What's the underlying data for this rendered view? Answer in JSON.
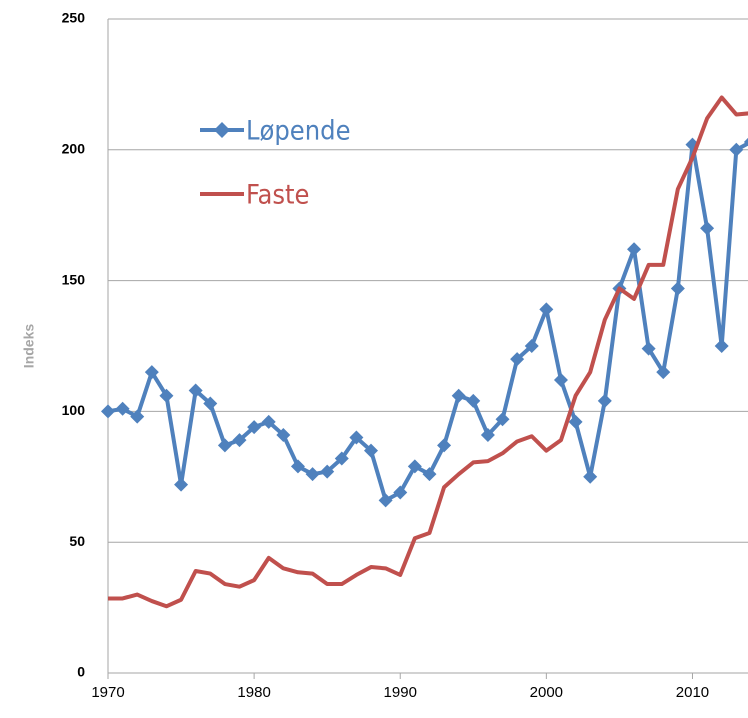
{
  "chart_data": {
    "type": "line",
    "ylabel": "Indeks",
    "x": [
      1970,
      1971,
      1972,
      1973,
      1974,
      1975,
      1976,
      1977,
      1978,
      1979,
      1980,
      1981,
      1982,
      1983,
      1984,
      1985,
      1986,
      1987,
      1988,
      1989,
      1990,
      1991,
      1992,
      1993,
      1994,
      1995,
      1996,
      1997,
      1998,
      1999,
      2000,
      2001,
      2002,
      2003,
      2004,
      2005,
      2006,
      2007,
      2008,
      2009,
      2010,
      2011,
      2012,
      2013,
      2014
    ],
    "series": [
      {
        "name": "Løpende",
        "color": "#4f81bd",
        "marker": "diamond",
        "values": [
          100,
          101,
          98,
          115,
          106,
          72,
          108,
          103,
          87,
          89,
          94,
          96,
          91,
          79,
          76,
          77,
          82,
          90,
          85,
          66,
          69,
          79,
          76,
          87,
          106,
          104,
          91,
          97,
          120,
          125,
          139,
          112,
          96,
          75,
          104,
          147,
          162,
          124,
          115,
          147,
          202,
          170,
          125,
          200,
          203
        ]
      },
      {
        "name": "Faste",
        "color": "#c0504d",
        "marker": "none",
        "values": [
          28.5,
          28.5,
          30,
          27.5,
          25.5,
          28,
          39,
          38,
          34,
          33,
          35.5,
          44,
          40,
          38.5,
          38,
          34,
          34,
          37.5,
          40.5,
          40,
          37.5,
          51.5,
          53.5,
          71,
          76,
          80.5,
          81,
          84,
          88.5,
          90.5,
          85,
          89,
          106,
          115,
          135,
          147,
          143,
          156,
          156,
          185,
          197,
          212,
          220,
          213.5,
          214
        ]
      }
    ],
    "xlim": [
      1970,
      2013.8
    ],
    "xticks": [
      1970,
      1980,
      1990,
      2000,
      2010
    ],
    "ylim": [
      0,
      250
    ],
    "yticks": [
      0,
      50,
      100,
      150,
      200,
      250
    ],
    "grid": true,
    "legend": "upper left"
  }
}
